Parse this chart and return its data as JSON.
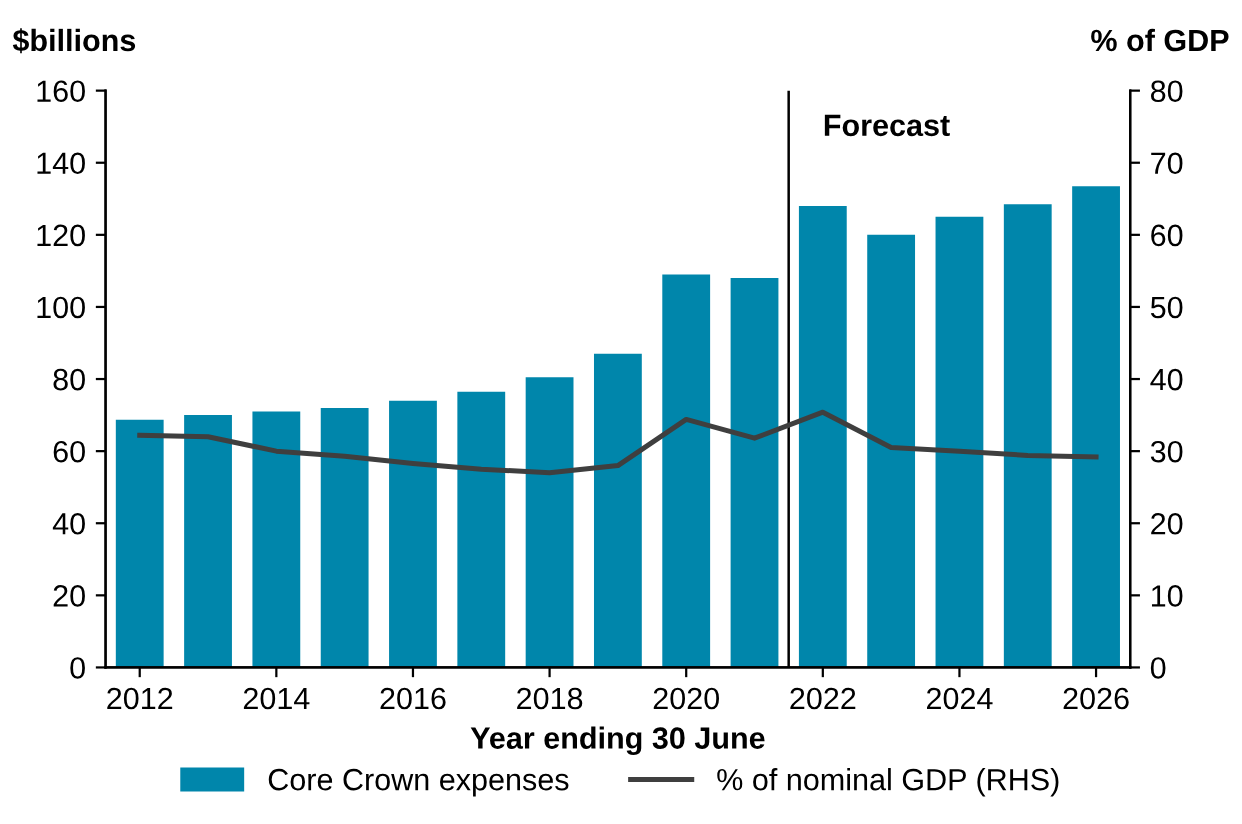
{
  "chart_data": {
    "type": "bar",
    "xlabel": "Year ending 30 June",
    "ylabel": "$billions",
    "y2label": "% of GDP",
    "x": [
      2012,
      2013,
      2014,
      2015,
      2016,
      2017,
      2018,
      2019,
      2020,
      2021,
      2022,
      2023,
      2024,
      2025,
      2026
    ],
    "xlim": [
      2011.5,
      2026.5
    ],
    "xticks": [
      2012,
      2014,
      2016,
      2018,
      2020,
      2022,
      2024,
      2026
    ],
    "ylim": [
      0,
      160
    ],
    "yticks": [
      0,
      20,
      40,
      60,
      80,
      100,
      120,
      140,
      160
    ],
    "y2lim": [
      0,
      80
    ],
    "y2ticks": [
      0,
      10,
      20,
      30,
      40,
      50,
      60,
      70,
      80
    ],
    "series": [
      {
        "name": "Core Crown expenses",
        "color": "#0086ab",
        "values": [
          68.7,
          70,
          71,
          72,
          74,
          76.5,
          80.5,
          87,
          109,
          108,
          128,
          120,
          125,
          128.5,
          133.5
        ]
      },
      {
        "name": "% of nominal GDP (RHS)",
        "type": "line",
        "axis": "y2",
        "color": "#3f3f3f",
        "values": [
          32.2,
          32,
          30,
          29.3,
          28.3,
          27.5,
          27,
          28,
          34.4,
          31.8,
          35.4,
          30.5,
          30,
          29.4,
          29.2
        ]
      }
    ],
    "ref_lines": [
      {
        "axis": "x",
        "value": 2021.5,
        "label": "Forecast",
        "color": "#000000"
      }
    ],
    "legend": "bottom",
    "grid": false
  }
}
